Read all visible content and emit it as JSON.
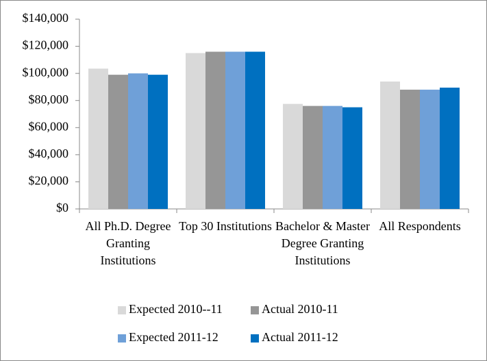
{
  "chart_data": {
    "type": "bar",
    "categories": [
      "All Ph.D. Degree Granting Institutions",
      "Top 30 Institutions",
      "Bachelor & Master Degree Granting Institutions",
      "All Respondents"
    ],
    "series": [
      {
        "name": "Expected 2010--11",
        "color": "#d9d9d9",
        "values": [
          103500,
          115000,
          77500,
          94000
        ]
      },
      {
        "name": "Actual 2010-11",
        "color": "#969696",
        "values": [
          99000,
          116000,
          76000,
          88000
        ]
      },
      {
        "name": "Expected 2011-12",
        "color": "#6fa0d8",
        "values": [
          100000,
          116000,
          76000,
          88000
        ]
      },
      {
        "name": "Actual 2011-12",
        "color": "#0070c0",
        "values": [
          99000,
          116000,
          75000,
          89500
        ]
      }
    ],
    "ylim": [
      0,
      140000
    ],
    "yticks": [
      {
        "value": 0,
        "label": "$0"
      },
      {
        "value": 20000,
        "label": "$20,000"
      },
      {
        "value": 40000,
        "label": "$40,000"
      },
      {
        "value": 60000,
        "label": "$60,000"
      },
      {
        "value": 80000,
        "label": "$80,000"
      },
      {
        "value": 100000,
        "label": "$100,000"
      },
      {
        "value": 120000,
        "label": "$120,000"
      },
      {
        "value": 140000,
        "label": "$140,000"
      }
    ],
    "grid": false
  }
}
